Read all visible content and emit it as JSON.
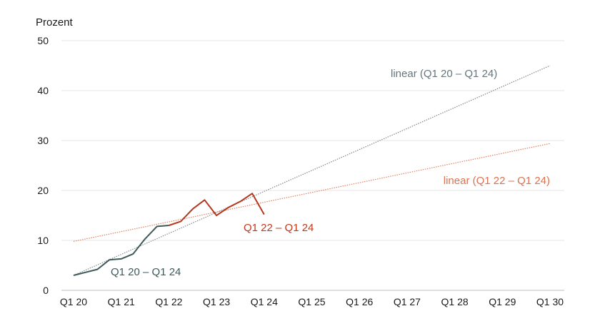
{
  "chart_data": {
    "type": "line",
    "ylabel": "Prozent",
    "ylim": [
      0,
      50
    ],
    "yticks": [
      0,
      10,
      20,
      30,
      40,
      50
    ],
    "x_tick_labels": [
      "Q1 20",
      "Q1 21",
      "Q1 22",
      "Q1 23",
      "Q1 24",
      "Q1 25",
      "Q1 26",
      "Q1 27",
      "Q1 28",
      "Q1 29",
      "Q1 30"
    ],
    "grid": true,
    "series": [
      {
        "name": "Q1 20 – Q1 24",
        "color": "#3f5a5a",
        "style": "solid",
        "points": [
          {
            "x": "Q1 20",
            "y": 3.0
          },
          {
            "x": "Q2 20",
            "y": 3.6
          },
          {
            "x": "Q3 20",
            "y": 4.2
          },
          {
            "x": "Q4 20",
            "y": 6.1
          },
          {
            "x": "Q1 21",
            "y": 6.3
          },
          {
            "x": "Q2 21",
            "y": 7.3
          },
          {
            "x": "Q3 21",
            "y": 10.3
          },
          {
            "x": "Q4 21",
            "y": 12.8
          },
          {
            "x": "Q1 22",
            "y": 13.0
          }
        ]
      },
      {
        "name": "Q1 22 – Q1 24",
        "color": "#b5381f",
        "style": "solid",
        "points": [
          {
            "x": "Q1 22",
            "y": 13.0
          },
          {
            "x": "Q2 22",
            "y": 13.8
          },
          {
            "x": "Q3 22",
            "y": 16.3
          },
          {
            "x": "Q4 22",
            "y": 18.1
          },
          {
            "x": "Q1 23",
            "y": 15.0
          },
          {
            "x": "Q2 23",
            "y": 16.6
          },
          {
            "x": "Q3 23",
            "y": 17.8
          },
          {
            "x": "Q4 23",
            "y": 19.4
          },
          {
            "x": "Q1 24",
            "y": 15.2
          }
        ]
      },
      {
        "name": "linear (Q1 20 – Q1 24)",
        "color": "#7d8a90",
        "style": "dotted",
        "points": [
          {
            "x": "Q1 20",
            "y": 3.0
          },
          {
            "x": "Q1 30",
            "y": 45.0
          }
        ]
      },
      {
        "name": "linear (Q1 22 – Q1 24)",
        "color": "#e08060",
        "style": "dotted",
        "points": [
          {
            "x": "Q1 20",
            "y": 9.8
          },
          {
            "x": "Q1 30",
            "y": 29.4
          }
        ]
      }
    ],
    "annotations": [
      {
        "text": "Q1 20 – Q1 24",
        "color": "#3f5a5a"
      },
      {
        "text": "Q1 22 – Q1 24",
        "color": "#c0391b"
      },
      {
        "text": "linear (Q1 20 – Q1 24)",
        "color": "#66757c"
      },
      {
        "text": "linear (Q1 22 – Q1 24)",
        "color": "#e07050"
      }
    ]
  }
}
